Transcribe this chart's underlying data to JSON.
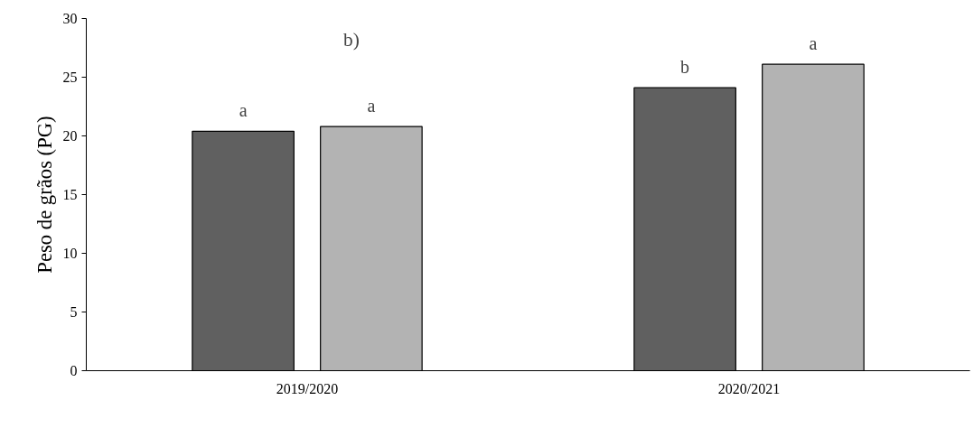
{
  "chart_data": {
    "type": "bar",
    "ylabel": "Peso de grãos (PG)",
    "categories": [
      "2019/2020",
      "2020/2021"
    ],
    "series": [
      {
        "color": "#606060",
        "values": [
          20.4,
          24.1
        ],
        "value_labels": [
          "a",
          "b"
        ]
      },
      {
        "color": "#b3b3b3",
        "values": [
          20.8,
          26.1
        ],
        "value_labels": [
          "a",
          "a"
        ]
      }
    ],
    "ylim": [
      0,
      30
    ],
    "yticks": [
      0,
      5,
      10,
      15,
      20,
      25,
      30
    ],
    "grid": false,
    "annotations": [
      "b)"
    ]
  }
}
